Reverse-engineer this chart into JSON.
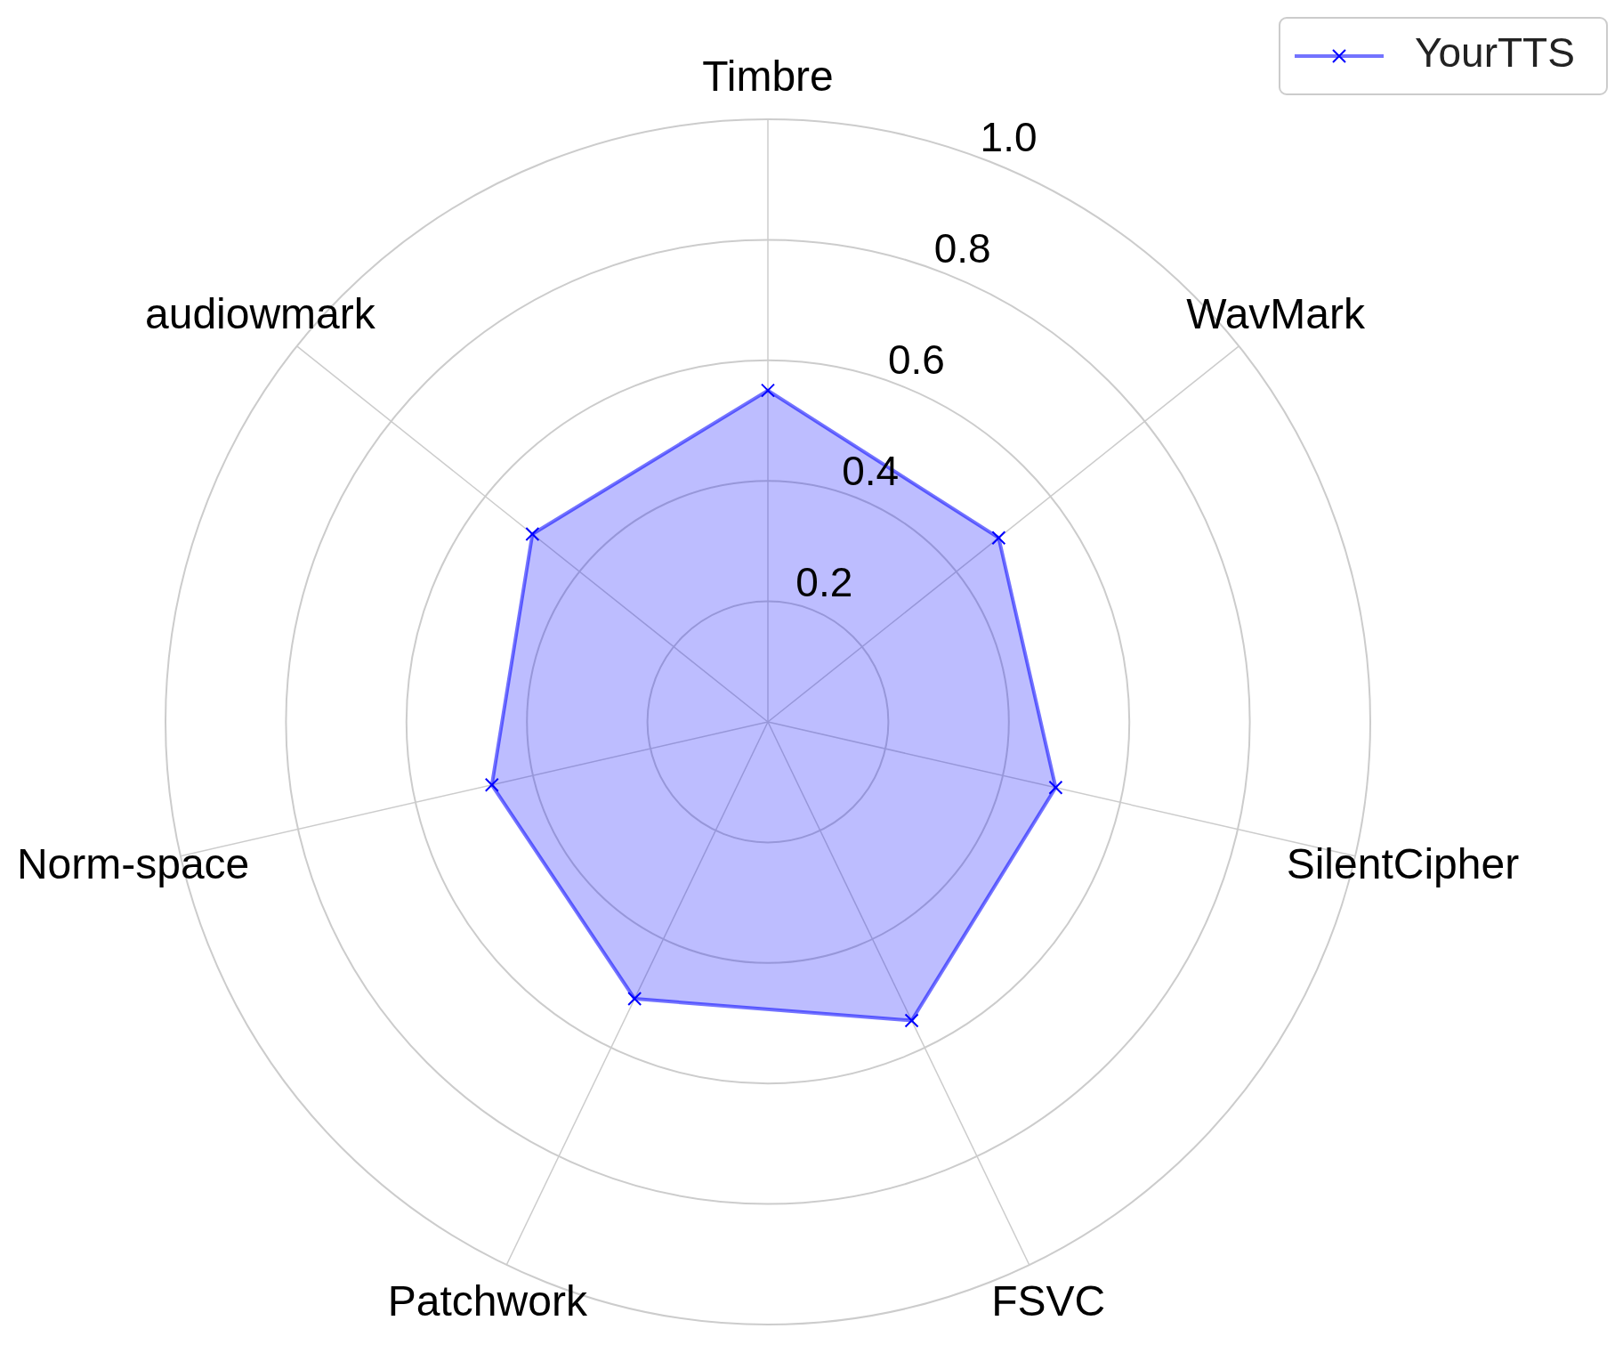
{
  "chart_data": {
    "type": "radar",
    "categories": [
      "Timbre",
      "WavMark",
      "SilentCipher",
      "FSVC",
      "Patchwork",
      "Norm-space",
      "audiowmark"
    ],
    "series": [
      {
        "name": "YourTTS",
        "color": "#0000ff",
        "values": [
          0.55,
          0.49,
          0.49,
          0.55,
          0.51,
          0.47,
          0.5
        ]
      }
    ],
    "ylim": [
      0,
      1
    ],
    "yticks": [
      {
        "value": 0.2,
        "label": "0.2"
      },
      {
        "value": 0.4,
        "label": "0.4"
      },
      {
        "value": 0.6,
        "label": "0.6"
      },
      {
        "value": 0.8,
        "label": "0.8"
      },
      {
        "value": 1,
        "label": "1.0"
      }
    ],
    "grid": true,
    "legend": "top right",
    "marker": "cross",
    "line_style": "solid"
  }
}
